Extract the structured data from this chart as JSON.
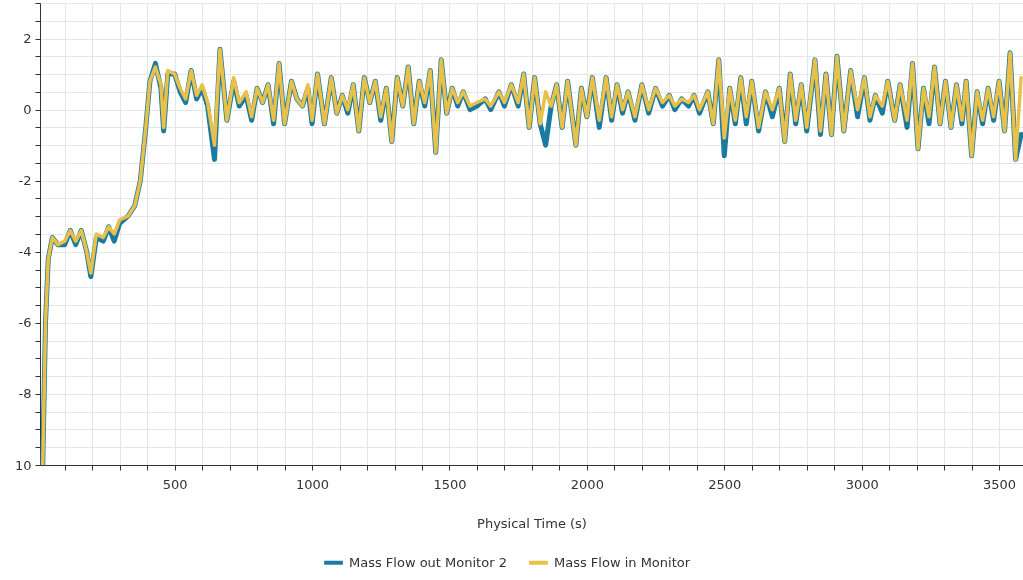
{
  "chart_data": {
    "type": "line",
    "xlabel": "Physical Time (s)",
    "xlim": [
      10,
      3587
    ],
    "ylim": [
      -10,
      3
    ],
    "xticks": [
      {
        "value": 100,
        "label": null
      },
      {
        "value": 200,
        "label": null
      },
      {
        "value": 300,
        "label": null
      },
      {
        "value": 400,
        "label": null
      },
      500,
      {
        "value": 600,
        "label": null
      },
      {
        "value": 700,
        "label": null
      },
      {
        "value": 800,
        "label": null
      },
      {
        "value": 900,
        "label": null
      },
      1000,
      {
        "value": 1100,
        "label": null
      },
      {
        "value": 1200,
        "label": null
      },
      {
        "value": 1300,
        "label": null
      },
      {
        "value": 1400,
        "label": null
      },
      1500,
      {
        "value": 1600,
        "label": null
      },
      {
        "value": 1700,
        "label": null
      },
      {
        "value": 1800,
        "label": null
      },
      {
        "value": 1900,
        "label": null
      },
      2000,
      {
        "value": 2100,
        "label": null
      },
      {
        "value": 2200,
        "label": null
      },
      {
        "value": 2300,
        "label": null
      },
      {
        "value": 2400,
        "label": null
      },
      2500,
      {
        "value": 2600,
        "label": null
      },
      {
        "value": 2700,
        "label": null
      },
      {
        "value": 2800,
        "label": null
      },
      {
        "value": 2900,
        "label": null
      },
      3000,
      {
        "value": 3100,
        "label": null
      },
      {
        "value": 3200,
        "label": null
      },
      {
        "value": 3300,
        "label": null
      },
      {
        "value": 3400,
        "label": null
      },
      3500
    ],
    "yticks": [
      {
        "value": -10,
        "label": "10"
      },
      {
        "value": -9.5,
        "label": null
      },
      {
        "value": -9,
        "label": null
      },
      {
        "value": -8.5,
        "label": null
      },
      -8,
      {
        "value": -7.5,
        "label": null
      },
      {
        "value": -7,
        "label": null
      },
      {
        "value": -6.5,
        "label": null
      },
      -6,
      {
        "value": -5.5,
        "label": null
      },
      {
        "value": -5,
        "label": null
      },
      {
        "value": -4.5,
        "label": null
      },
      -4,
      {
        "value": -3.5,
        "label": null
      },
      {
        "value": -3,
        "label": null
      },
      {
        "value": -2.5,
        "label": null
      },
      -2,
      {
        "value": -1.5,
        "label": null
      },
      {
        "value": -1,
        "label": null
      },
      {
        "value": -0.5,
        "label": null
      },
      0,
      {
        "value": 0.5,
        "label": null
      },
      {
        "value": 1,
        "label": null
      },
      {
        "value": 1.5,
        "label": null
      },
      2,
      {
        "value": 2.5,
        "label": null
      },
      {
        "value": 3,
        "label": null
      }
    ],
    "grid": true,
    "legend": "bottom",
    "line_style": "solid",
    "x": [
      20,
      30,
      40,
      55,
      75,
      100,
      120,
      140,
      160,
      180,
      195,
      215,
      240,
      260,
      280,
      300,
      330,
      355,
      375,
      395,
      410,
      430,
      450,
      460,
      475,
      500,
      520,
      540,
      560,
      580,
      600,
      620,
      645,
      665,
      690,
      715,
      735,
      760,
      780,
      800,
      820,
      840,
      860,
      880,
      900,
      925,
      945,
      965,
      985,
      1000,
      1020,
      1045,
      1070,
      1090,
      1110,
      1130,
      1150,
      1170,
      1190,
      1210,
      1230,
      1250,
      1270,
      1290,
      1310,
      1330,
      1350,
      1370,
      1390,
      1410,
      1430,
      1450,
      1470,
      1490,
      1510,
      1530,
      1550,
      1575,
      1600,
      1630,
      1650,
      1680,
      1700,
      1725,
      1750,
      1770,
      1790,
      1810,
      1830,
      1850,
      1870,
      1890,
      1910,
      1930,
      1960,
      1980,
      2000,
      2020,
      2045,
      2070,
      2090,
      2110,
      2130,
      2150,
      2175,
      2200,
      2225,
      2250,
      2275,
      2300,
      2320,
      2345,
      2370,
      2390,
      2410,
      2440,
      2460,
      2480,
      2500,
      2520,
      2540,
      2560,
      2580,
      2600,
      2625,
      2650,
      2675,
      2700,
      2720,
      2740,
      2760,
      2780,
      2800,
      2830,
      2850,
      2870,
      2890,
      2910,
      2935,
      2960,
      2985,
      3010,
      3030,
      3050,
      3075,
      3095,
      3120,
      3140,
      3165,
      3185,
      3205,
      3225,
      3245,
      3265,
      3285,
      3305,
      3325,
      3345,
      3365,
      3380,
      3400,
      3420,
      3440,
      3460,
      3480,
      3500,
      3520,
      3540,
      3560,
      3580
    ],
    "series": [
      {
        "name": "Mass Flow out Monitor 2",
        "color": "#1a7aa0",
        "values": [
          -10,
          -6,
          -4.2,
          -3.6,
          -3.8,
          -3.8,
          -3.4,
          -3.8,
          -3.4,
          -4.0,
          -4.7,
          -3.6,
          -3.7,
          -3.3,
          -3.7,
          -3.2,
          -3.0,
          -2.7,
          -2.0,
          -0.5,
          0.8,
          1.3,
          0.6,
          -0.6,
          1.0,
          1.0,
          0.5,
          0.2,
          1.1,
          0.3,
          0.6,
          0.1,
          -1.4,
          1.7,
          -0.3,
          0.8,
          0.1,
          0.4,
          -0.3,
          0.6,
          0.2,
          0.7,
          -0.4,
          1.3,
          -0.4,
          0.8,
          0.3,
          0.1,
          0.6,
          -0.4,
          1.0,
          -0.4,
          0.9,
          -0.1,
          0.4,
          -0.1,
          0.7,
          -0.6,
          0.9,
          0.2,
          0.8,
          -0.3,
          0.6,
          -0.9,
          0.9,
          0.1,
          1.2,
          -0.4,
          0.8,
          0.1,
          1.1,
          -1.2,
          1.4,
          -0.1,
          0.6,
          0.1,
          0.5,
          0.0,
          0.1,
          0.3,
          0.0,
          0.5,
          0.1,
          0.7,
          0.1,
          1.0,
          -0.5,
          0.9,
          -0.4,
          -1.0,
          0.1,
          0.7,
          -0.5,
          0.8,
          -1.0,
          0.6,
          -0.2,
          0.9,
          -0.5,
          0.9,
          -0.3,
          0.7,
          -0.1,
          0.5,
          -0.3,
          0.7,
          -0.1,
          0.6,
          0.1,
          0.4,
          0.0,
          0.3,
          0.1,
          0.4,
          -0.1,
          0.5,
          -0.4,
          1.4,
          -1.3,
          0.6,
          -0.4,
          0.9,
          -0.4,
          0.8,
          -0.6,
          0.5,
          -0.2,
          0.6,
          -0.9,
          1.0,
          -0.4,
          0.7,
          -0.6,
          1.4,
          -0.7,
          1.0,
          -0.7,
          1.5,
          -0.6,
          1.1,
          -0.2,
          0.9,
          -0.3,
          0.4,
          -0.1,
          0.8,
          -0.3,
          0.7,
          -0.5,
          1.3,
          -1.1,
          0.6,
          -0.4,
          1.2,
          -0.4,
          0.8,
          -0.5,
          0.7,
          -0.4,
          0.8,
          -1.3,
          0.5,
          -0.4,
          0.6,
          -0.3,
          0.8,
          -0.6,
          1.6,
          -1.4,
          -0.7
        ]
      },
      {
        "name": "Mass Flow in Monitor",
        "color": "#e8c04a",
        "values": [
          -10,
          -6,
          -4.2,
          -3.6,
          -3.8,
          -3.7,
          -3.4,
          -3.7,
          -3.4,
          -4.0,
          -4.6,
          -3.5,
          -3.6,
          -3.3,
          -3.5,
          -3.1,
          -3.0,
          -2.7,
          -2.0,
          -0.5,
          0.8,
          1.2,
          0.7,
          -0.5,
          1.1,
          1.0,
          0.6,
          0.3,
          1.1,
          0.4,
          0.7,
          0.2,
          -1.0,
          1.7,
          -0.3,
          0.9,
          0.2,
          0.5,
          -0.2,
          0.6,
          0.2,
          0.7,
          -0.3,
          1.3,
          -0.4,
          0.8,
          0.3,
          0.1,
          0.7,
          -0.3,
          1.0,
          -0.4,
          0.9,
          -0.1,
          0.4,
          0.0,
          0.7,
          -0.6,
          0.9,
          0.2,
          0.8,
          -0.2,
          0.6,
          -0.9,
          0.9,
          0.1,
          1.2,
          -0.4,
          0.8,
          0.2,
          1.1,
          -1.2,
          1.4,
          -0.1,
          0.6,
          0.2,
          0.5,
          0.1,
          0.2,
          0.3,
          0.1,
          0.5,
          0.2,
          0.7,
          0.2,
          1.0,
          -0.5,
          0.9,
          -0.4,
          0.5,
          0.1,
          0.7,
          -0.5,
          0.8,
          -1.0,
          0.6,
          -0.2,
          0.9,
          -0.3,
          0.9,
          -0.2,
          0.7,
          0.0,
          0.5,
          -0.2,
          0.7,
          0.0,
          0.6,
          0.2,
          0.4,
          0.1,
          0.3,
          0.2,
          0.4,
          0.0,
          0.5,
          -0.4,
          1.4,
          -0.8,
          0.6,
          -0.3,
          0.9,
          -0.2,
          0.8,
          -0.5,
          0.5,
          0.0,
          0.6,
          -0.9,
          1.0,
          -0.3,
          0.7,
          -0.5,
          1.4,
          -0.6,
          1.0,
          -0.7,
          1.5,
          -0.6,
          1.1,
          0.0,
          0.9,
          -0.2,
          0.4,
          0.1,
          0.8,
          -0.3,
          0.7,
          -0.3,
          1.3,
          -1.1,
          0.6,
          -0.2,
          1.2,
          -0.4,
          0.8,
          -0.5,
          0.7,
          -0.3,
          0.8,
          -1.3,
          0.5,
          -0.3,
          0.6,
          -0.2,
          0.8,
          -0.6,
          1.6,
          -1.4,
          0.9
        ]
      }
    ]
  }
}
